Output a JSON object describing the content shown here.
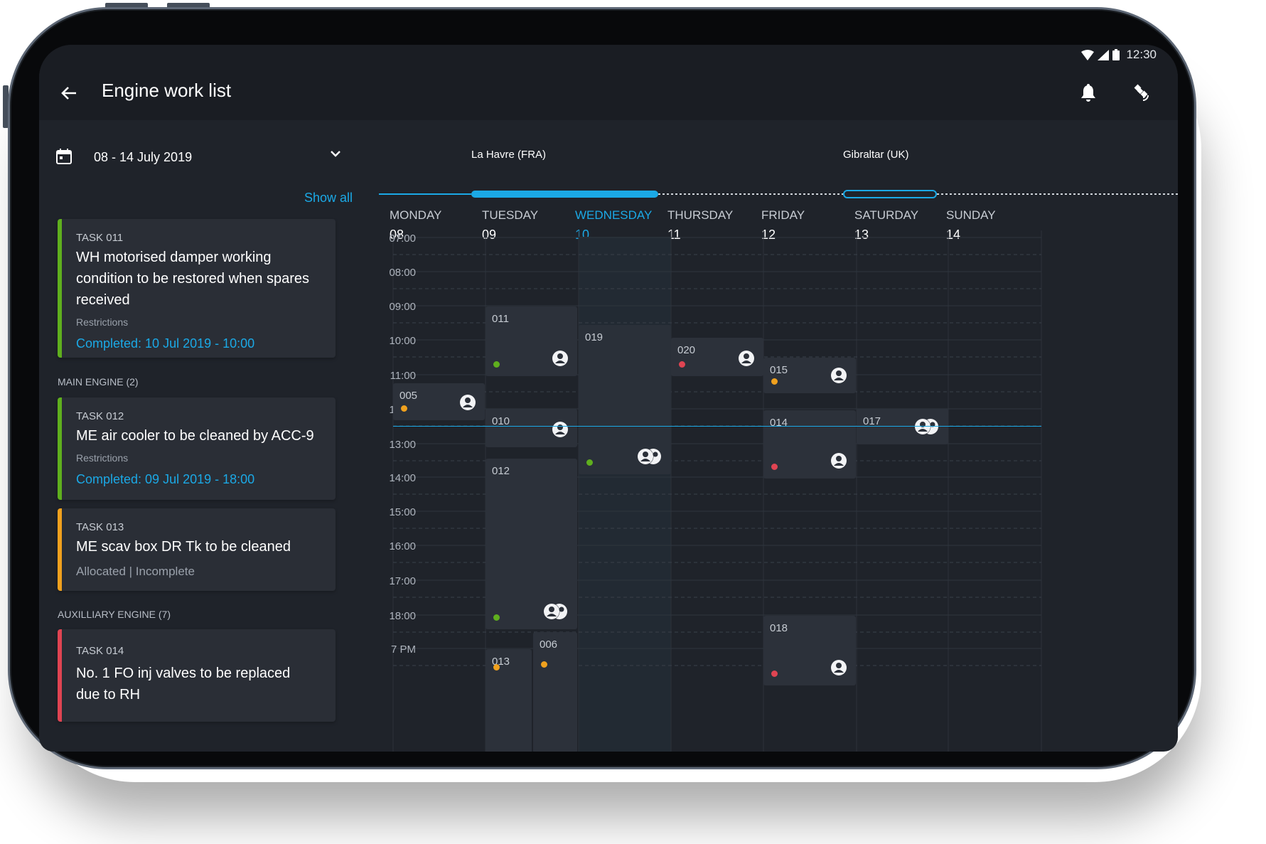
{
  "status_bar": {
    "time": "12:30",
    "icons": [
      "wifi-icon",
      "signal-icon",
      "battery-icon"
    ]
  },
  "app_bar": {
    "title": "Engine work list",
    "back_icon": "arrow-left-icon",
    "actions": [
      "bell-icon",
      "satellite-icon"
    ]
  },
  "colors": {
    "accent": "#1ba9e6",
    "green": "#5faf1e",
    "orange": "#f0a11e",
    "red": "#e04452",
    "background": "#1f232a",
    "card": "#2a2e36"
  },
  "sidebar": {
    "date_range": "08 - 14 July 2019",
    "show_all": "Show all",
    "task_011": {
      "id": "TASK 011",
      "title": "WH motorised damper working condition to be restored when spares received",
      "restrictions": "Restrictions",
      "completed": "Completed: 10 Jul 2019 - 10:00",
      "status_color": "green"
    },
    "main_engine_label": "MAIN ENGINE (2)",
    "task_012": {
      "id": "TASK 012",
      "title": "ME air cooler to be cleaned by ACC-9",
      "restrictions": "Restrictions",
      "completed": "Completed: 09 Jul 2019 - 18:00",
      "status_color": "green"
    },
    "task_013": {
      "id": "TASK 013",
      "title": "ME scav box DR Tk to be cleaned",
      "status": "Allocated | Incomplete",
      "status_color": "orange"
    },
    "auxiliary_engine_label": "AUXILLIARY ENGINE (7)",
    "task_014": {
      "id": "TASK 014",
      "title": "No. 1 FO inj valves to be replaced due to RH",
      "status_color": "red"
    }
  },
  "route": {
    "port_1": "La Havre (FRA)",
    "port_2": "Gibraltar (UK)"
  },
  "calendar": {
    "days": [
      {
        "name": "MONDAY",
        "date": "08"
      },
      {
        "name": "TUESDAY",
        "date": "09"
      },
      {
        "name": "WEDNESDAY",
        "date": "10"
      },
      {
        "name": "THURSDAY",
        "date": "11"
      },
      {
        "name": "FRIDAY",
        "date": "12"
      },
      {
        "name": "SATURDAY",
        "date": "13"
      },
      {
        "name": "SUNDAY",
        "date": "14"
      }
    ],
    "today_index": 2,
    "time_labels": [
      "07:00",
      "08:00",
      "09:00",
      "10:00",
      "11:00",
      "12:00",
      "13:00",
      "14:00",
      "15:00",
      "16:00",
      "17:00",
      "18:00",
      "7 PM"
    ],
    "current_time_indicator": "12:30",
    "events": [
      {
        "id": "005",
        "day": "MONDAY",
        "status_color": "orange",
        "assignee_icon": "person-icon"
      },
      {
        "id": "011",
        "day": "TUESDAY",
        "status_color": "green",
        "assignee_icon": "person-icon"
      },
      {
        "id": "010",
        "day": "TUESDAY",
        "status_color": "",
        "assignee_icon": "person-icon"
      },
      {
        "id": "012",
        "day": "TUESDAY",
        "status_color": "green",
        "assignee_icon": "group-icon"
      },
      {
        "id": "013",
        "day": "TUESDAY",
        "status_color": "orange",
        "assignee_icon": ""
      },
      {
        "id": "006",
        "day": "TUESDAY",
        "status_color": "orange",
        "assignee_icon": ""
      },
      {
        "id": "019",
        "day": "WEDNESDAY",
        "status_color": "green",
        "assignee_icon": "group-icon"
      },
      {
        "id": "020",
        "day": "THURSDAY",
        "status_color": "red",
        "assignee_icon": "person-icon"
      },
      {
        "id": "015",
        "day": "FRIDAY",
        "status_color": "orange",
        "assignee_icon": "person-icon"
      },
      {
        "id": "014",
        "day": "FRIDAY",
        "status_color": "red",
        "assignee_icon": "person-icon"
      },
      {
        "id": "018",
        "day": "FRIDAY",
        "status_color": "red",
        "assignee_icon": "person-icon"
      },
      {
        "id": "017",
        "day": "SATURDAY",
        "status_color": "",
        "assignee_icon": "group-icon"
      }
    ]
  },
  "fab": {
    "icon": "plus-icon"
  }
}
